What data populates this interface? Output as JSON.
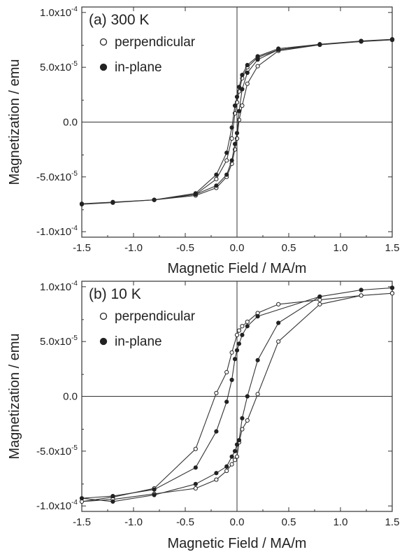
{
  "chart_data": [
    {
      "type": "scatter",
      "panel_label": "(a) 300 K",
      "xlabel": "Magnetic Field / MA/m",
      "ylabel": "Magnetization / emu",
      "xlim": [
        -1.5,
        1.5
      ],
      "ylim": [
        -0.000105,
        0.000105
      ],
      "xticks": [
        -1.5,
        -1.0,
        -0.5,
        0.0,
        0.5,
        1.0,
        1.5
      ],
      "xtick_labels": [
        "-1.5",
        "-1.0",
        "-0.5",
        "0.0",
        "0.5",
        "1.0",
        "1.5"
      ],
      "yticks": [
        -0.0001,
        -5e-05,
        0.0,
        5e-05,
        0.0001
      ],
      "ytick_labels": [
        {
          "base": "-1.0x10",
          "exp": "-4"
        },
        {
          "base": "-5.0x10",
          "exp": "-5"
        },
        {
          "base": "0.0",
          "exp": ""
        },
        {
          "base": "5.0x10",
          "exp": "-5"
        },
        {
          "base": "1.0x10",
          "exp": "-4"
        }
      ],
      "legend_position": "top-left",
      "series": [
        {
          "name": "perpendicular",
          "marker": "open-circle",
          "x": [
            1.5,
            1.2,
            0.8,
            0.4,
            0.2,
            0.1,
            0.05,
            0.02,
            0.0,
            -0.02,
            -0.05,
            -0.1,
            -0.2,
            -0.4,
            -0.8,
            -1.2,
            -1.5,
            -1.2,
            -0.8,
            -0.4,
            -0.2,
            -0.1,
            -0.05,
            -0.02,
            0.0,
            0.02,
            0.05,
            0.1,
            0.2,
            0.4,
            0.8,
            1.2,
            1.5
          ],
          "y": [
            7.5e-05,
            7.35e-05,
            7.05e-05,
            6.6e-05,
            5.9e-05,
            5e-05,
            4e-05,
            2.8e-05,
            1.8e-05,
            8e-06,
            -1.5e-05,
            -3.5e-05,
            -5.2e-05,
            -6.6e-05,
            -7.1e-05,
            -7.3e-05,
            -7.45e-05,
            -7.3e-05,
            -7.1e-05,
            -6.7e-05,
            -6e-05,
            -5e-05,
            -3.8e-05,
            -2.5e-05,
            -1.5e-05,
            2e-06,
            1.5e-05,
            3.5e-05,
            5.1e-05,
            6.5e-05,
            7.05e-05,
            7.35e-05,
            7.5e-05
          ]
        },
        {
          "name": "in-plane",
          "marker": "filled-circle",
          "x": [
            1.5,
            1.2,
            0.8,
            0.4,
            0.2,
            0.1,
            0.05,
            0.02,
            0.0,
            -0.02,
            -0.05,
            -0.1,
            -0.2,
            -0.4,
            -0.8,
            -1.2,
            -1.5,
            -1.2,
            -0.8,
            -0.4,
            -0.2,
            -0.1,
            -0.05,
            -0.02,
            0.0,
            0.02,
            0.05,
            0.1,
            0.2,
            0.4,
            0.8,
            1.2,
            1.5
          ],
          "y": [
            7.55e-05,
            7.4e-05,
            7.1e-05,
            6.7e-05,
            6e-05,
            5.2e-05,
            4.3e-05,
            3.2e-05,
            2.3e-05,
            1.5e-05,
            -5e-06,
            -2.8e-05,
            -4.8e-05,
            -6.5e-05,
            -7.1e-05,
            -7.35e-05,
            -7.5e-05,
            -7.35e-05,
            -7.1e-05,
            -6.6e-05,
            -5.8e-05,
            -4.8e-05,
            -3.5e-05,
            -2e-05,
            -1e-05,
            1e-05,
            3e-05,
            4.5e-05,
            5.7e-05,
            6.6e-05,
            7.1e-05,
            7.4e-05,
            7.55e-05
          ]
        }
      ]
    },
    {
      "type": "scatter",
      "panel_label": "(b) 10 K",
      "xlabel": "Magnetic Field / MA/m",
      "ylabel": "Magnetization / emu",
      "xlim": [
        -1.5,
        1.5
      ],
      "ylim": [
        -0.000105,
        0.000105
      ],
      "xticks": [
        -1.5,
        -1.0,
        -0.5,
        0.0,
        0.5,
        1.0,
        1.5
      ],
      "xtick_labels": [
        "-1.5",
        "-1.0",
        "-0.5",
        "0.0",
        "0.5",
        "1.0",
        "1.5"
      ],
      "yticks": [
        -0.0001,
        -5e-05,
        0.0,
        5e-05,
        0.0001
      ],
      "ytick_labels": [
        {
          "base": "-1.0x10",
          "exp": "-4"
        },
        {
          "base": "-5.0x10",
          "exp": "-5"
        },
        {
          "base": "0.0",
          "exp": ""
        },
        {
          "base": "5.0x10",
          "exp": "-5"
        },
        {
          "base": "1.0x10",
          "exp": "-4"
        }
      ],
      "legend_position": "top-left",
      "series": [
        {
          "name": "perpendicular",
          "marker": "open-circle",
          "x": [
            1.5,
            1.2,
            0.8,
            0.4,
            0.2,
            0.1,
            0.05,
            0.02,
            0.0,
            -0.05,
            -0.1,
            -0.2,
            -0.4,
            -0.8,
            -1.2,
            -1.5,
            -1.2,
            -0.8,
            -0.4,
            -0.2,
            -0.1,
            -0.05,
            -0.02,
            0.0,
            0.02,
            0.05,
            0.1,
            0.2,
            0.4,
            0.8,
            1.2,
            1.5
          ],
          "y": [
            9.4e-05,
            9.2e-05,
            8.8e-05,
            8.4e-05,
            7.6e-05,
            6.8e-05,
            6.4e-05,
            6e-05,
            5.6e-05,
            4e-05,
            2.2e-05,
            3e-06,
            -4.8e-05,
            -8.4e-05,
            -9.2e-05,
            -9.6e-05,
            -9.4e-05,
            -8.9e-05,
            -8.4e-05,
            -7.6e-05,
            -6.8e-05,
            -6.2e-05,
            -5.8e-05,
            -5.5e-05,
            -4.2e-05,
            -3e-05,
            -2.2e-05,
            2e-06,
            5e-05,
            8.4e-05,
            9.2e-05,
            9.4e-05
          ]
        },
        {
          "name": "in-plane",
          "marker": "filled-circle",
          "x": [
            1.5,
            1.2,
            0.8,
            0.2,
            0.1,
            0.05,
            0.02,
            0.0,
            -0.02,
            -0.05,
            -0.1,
            -0.2,
            -0.4,
            -0.8,
            -1.2,
            -1.5,
            -1.2,
            -0.8,
            -0.4,
            -0.2,
            -0.1,
            -0.05,
            -0.02,
            0.0,
            0.02,
            0.05,
            0.1,
            0.2,
            0.4,
            0.8,
            1.2,
            1.5
          ],
          "y": [
            9.9e-05,
            9.7e-05,
            9.1e-05,
            7.3e-05,
            6.4e-05,
            5.6e-05,
            4.8e-05,
            4.2e-05,
            3.4e-05,
            1.5e-05,
            -5e-06,
            -3.2e-05,
            -6.5e-05,
            -8.5e-05,
            -9.1e-05,
            -9.3e-05,
            -9.6e-05,
            -9e-05,
            -8e-05,
            -7e-05,
            -6.4e-05,
            -5.5e-05,
            -5e-05,
            -4.4e-05,
            -4e-05,
            -2e-05,
            0.0,
            3.3e-05,
            6.7e-05,
            9.1e-05,
            9.7e-05,
            9.9e-05
          ]
        }
      ]
    }
  ]
}
